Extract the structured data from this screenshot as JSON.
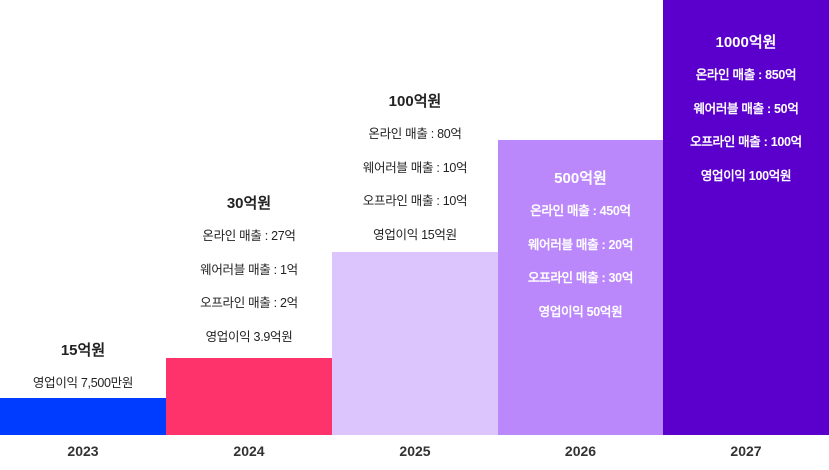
{
  "chart_data": {
    "type": "bar",
    "title": "",
    "categories": [
      "2023",
      "2024",
      "2025",
      "2026",
      "2027"
    ],
    "colors": [
      "#003cff",
      "#ff336b",
      "#dcc5fc",
      "#bb88fc",
      "#5b00cc"
    ],
    "values_label": [
      "15억원",
      "30억원",
      "100억원",
      "500억원",
      "1000억원"
    ],
    "values": [
      15,
      30,
      100,
      500,
      1000
    ],
    "unit": "억원",
    "details": [
      [
        "영업이익 7,500만원"
      ],
      [
        "온라인 매출 : 27억",
        "웨어러블 매출 : 1억",
        "오프라인 매출 : 2억",
        "영업이익 3.9억원"
      ],
      [
        "온라인 매출 : 80억",
        "웨어러블 매출 : 10억",
        "오프라인 매출 : 10억",
        "영업이익 15억원"
      ],
      [
        "온라인 매출 : 450억",
        "웨어러블 매출 : 20억",
        "오프라인 매출 : 30억",
        "영업이익 50억원"
      ],
      [
        "온라인 매출 : 850억",
        "웨어러블 매출 : 50억",
        "오프라인 매출 : 100억",
        "영업이익 100억원"
      ]
    ]
  }
}
